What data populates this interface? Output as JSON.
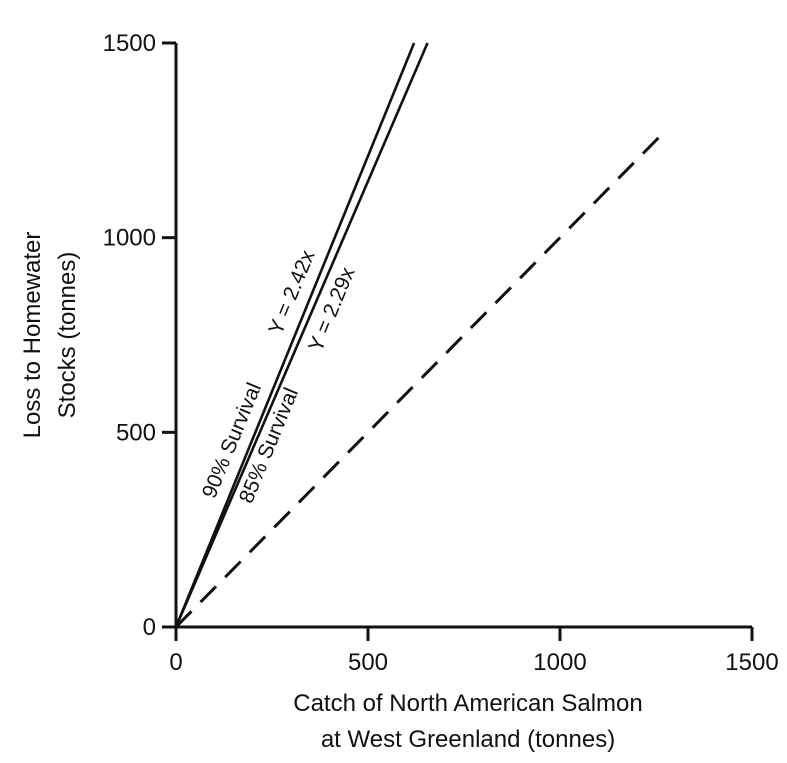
{
  "chart_data": {
    "type": "line",
    "title": "",
    "xlabel_lines": [
      "Catch of North American Salmon",
      "at West Greenland (tonnes)"
    ],
    "ylabel_lines": [
      "Loss to Homewater",
      "Stocks (tonnes)"
    ],
    "xlim": [
      0,
      1500
    ],
    "ylim": [
      0,
      1500
    ],
    "xticks": [
      0,
      500,
      1000,
      1500
    ],
    "yticks": [
      0,
      500,
      1000,
      1500
    ],
    "grid": false,
    "series": [
      {
        "name": "90% Survival",
        "equation": "Y = 2.42x",
        "slope": 2.42,
        "style": "solid",
        "x": [
          0,
          620
        ],
        "y": [
          0,
          1500
        ]
      },
      {
        "name": "85% Survival",
        "equation": "Y = 2.29x",
        "slope": 2.29,
        "style": "solid",
        "x": [
          0,
          655
        ],
        "y": [
          0,
          1500
        ]
      },
      {
        "style": "dashed",
        "x": [
          0,
          1270
        ],
        "y": [
          0,
          1270
        ]
      }
    ],
    "annotations": {
      "line_90_equation": "Y = 2.42x",
      "line_90_survival": "90% Survival",
      "line_85_equation": "Y = 2.29x",
      "line_85_survival": "85% Survival"
    }
  }
}
